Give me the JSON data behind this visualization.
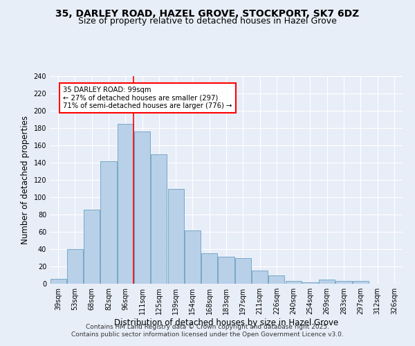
{
  "title1": "35, DARLEY ROAD, HAZEL GROVE, STOCKPORT, SK7 6DZ",
  "title2": "Size of property relative to detached houses in Hazel Grove",
  "xlabel": "Distribution of detached houses by size in Hazel Grove",
  "ylabel": "Number of detached properties",
  "categories": [
    "39sqm",
    "53sqm",
    "68sqm",
    "82sqm",
    "96sqm",
    "111sqm",
    "125sqm",
    "139sqm",
    "154sqm",
    "168sqm",
    "183sqm",
    "197sqm",
    "211sqm",
    "226sqm",
    "240sqm",
    "254sqm",
    "269sqm",
    "283sqm",
    "297sqm",
    "312sqm",
    "326sqm"
  ],
  "values": [
    6,
    40,
    86,
    142,
    185,
    176,
    150,
    110,
    62,
    35,
    31,
    30,
    15,
    10,
    3,
    2,
    5,
    3,
    3,
    0,
    0
  ],
  "bar_color": "#b8d0e8",
  "bar_edge_color": "#6a9fc0",
  "annotation_text": "35 DARLEY ROAD: 99sqm\n← 27% of detached houses are smaller (297)\n71% of semi-detached houses are larger (776) →",
  "ylim": [
    0,
    240
  ],
  "yticks": [
    0,
    20,
    40,
    60,
    80,
    100,
    120,
    140,
    160,
    180,
    200,
    220,
    240
  ],
  "footer1": "Contains HM Land Registry data © Crown copyright and database right 2025.",
  "footer2": "Contains public sector information licensed under the Open Government Licence v3.0.",
  "bg_color": "#e8eef8",
  "grid_color": "#ffffff",
  "title_fontsize": 10,
  "subtitle_fontsize": 9,
  "tick_fontsize": 7,
  "axis_label_fontsize": 8.5,
  "footer_fontsize": 6.5
}
